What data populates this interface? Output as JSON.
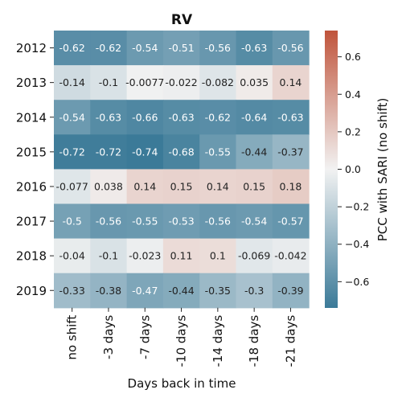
{
  "chart_data": {
    "type": "heatmap",
    "title": "RV",
    "xlabel": "Days back in time",
    "ylabel": "",
    "x_categories": [
      "no shift",
      "-3 days",
      "-7 days",
      "-10 days",
      "-14 days",
      "-18 days",
      "-21 days"
    ],
    "y_categories": [
      "2012",
      "2013",
      "2014",
      "2015",
      "2016",
      "2017",
      "2018",
      "2019"
    ],
    "values": [
      [
        -0.62,
        -0.62,
        -0.54,
        -0.51,
        -0.56,
        -0.63,
        -0.56
      ],
      [
        -0.14,
        -0.1,
        -0.0077,
        -0.022,
        -0.082,
        0.035,
        0.14
      ],
      [
        -0.54,
        -0.63,
        -0.66,
        -0.63,
        -0.62,
        -0.64,
        -0.63
      ],
      [
        -0.72,
        -0.72,
        -0.74,
        -0.68,
        -0.55,
        -0.44,
        -0.37
      ],
      [
        -0.077,
        0.038,
        0.14,
        0.15,
        0.14,
        0.15,
        0.18
      ],
      [
        -0.5,
        -0.56,
        -0.55,
        -0.53,
        -0.56,
        -0.54,
        -0.57
      ],
      [
        -0.04,
        -0.1,
        -0.023,
        0.11,
        0.1,
        -0.069,
        -0.042
      ],
      [
        -0.33,
        -0.38,
        -0.47,
        -0.44,
        -0.35,
        -0.3,
        -0.39
      ]
    ],
    "cell_labels": [
      [
        "-0.62",
        "-0.62",
        "-0.54",
        "-0.51",
        "-0.56",
        "-0.63",
        "-0.56"
      ],
      [
        "-0.14",
        "-0.1",
        "-0.0077",
        "-0.022",
        "-0.082",
        "0.035",
        "0.14"
      ],
      [
        "-0.54",
        "-0.63",
        "-0.66",
        "-0.63",
        "-0.62",
        "-0.64",
        "-0.63"
      ],
      [
        "-0.72",
        "-0.72",
        "-0.74",
        "-0.68",
        "-0.55",
        "-0.44",
        "-0.37"
      ],
      [
        "-0.077",
        "0.038",
        "0.14",
        "0.15",
        "0.14",
        "0.15",
        "0.18"
      ],
      [
        "-0.5",
        "-0.56",
        "-0.55",
        "-0.53",
        "-0.56",
        "-0.54",
        "-0.57"
      ],
      [
        "-0.04",
        "-0.1",
        "-0.023",
        "0.11",
        "0.1",
        "-0.069",
        "-0.042"
      ],
      [
        "-0.33",
        "-0.38",
        "-0.47",
        "-0.44",
        "-0.35",
        "-0.3",
        "-0.39"
      ]
    ],
    "colorbar": {
      "label": "PCC with SARI (no shift)",
      "range": [
        -0.74,
        0.74
      ],
      "ticks": [
        0.6,
        0.4,
        0.2,
        0.0,
        -0.2,
        -0.4,
        -0.6
      ],
      "tick_labels": [
        "0.6",
        "0.4",
        "0.2",
        "0.0",
        "−0.2",
        "−0.4",
        "−0.6"
      ],
      "colors": {
        "negative": "#3b7a98",
        "center": "#f2f2f2",
        "positive": "#c0543b"
      }
    },
    "grid": false,
    "legend": "colorbar-right"
  }
}
